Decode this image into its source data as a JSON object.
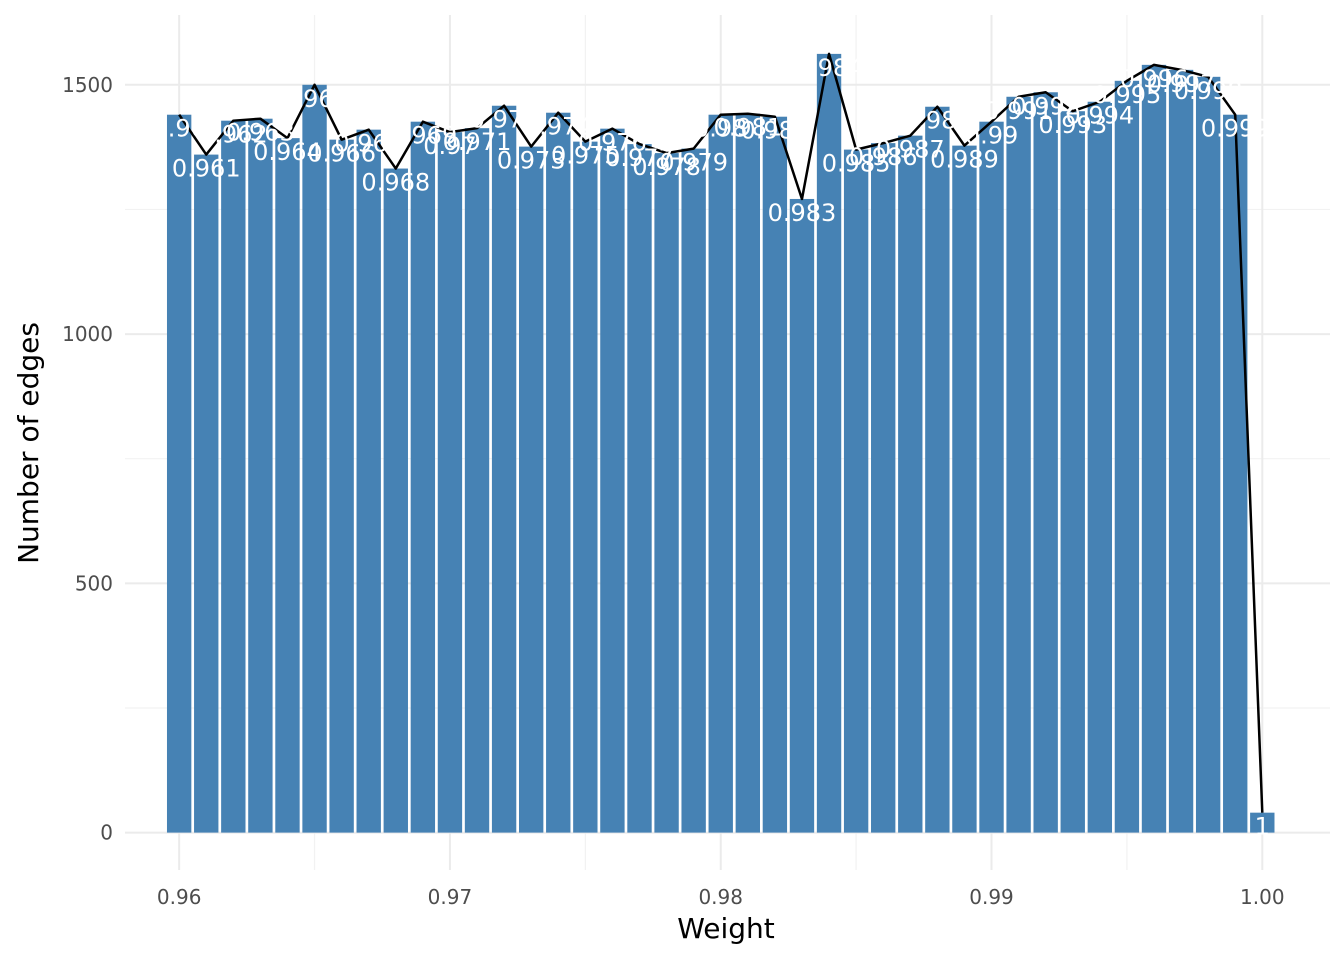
{
  "chart_data": {
    "type": "bar",
    "title": "",
    "xlabel": "Weight",
    "ylabel": "Number of edges",
    "xlim": [
      0.958,
      1.0025
    ],
    "ylim": [
      -75,
      1640
    ],
    "x_ticks": [
      0.96,
      0.97,
      0.98,
      0.99,
      1.0
    ],
    "x_tick_labels": [
      "0.96",
      "0.97",
      "0.98",
      "0.99",
      "1.00"
    ],
    "y_ticks": [
      0,
      500,
      1000,
      1500
    ],
    "y_tick_labels": [
      "0",
      "500",
      "1000",
      "1500"
    ],
    "grid": true,
    "legend": "none",
    "bar_color": "#4682b4",
    "line_color": "#000000",
    "label_color": "#ffffff",
    "x": [
      0.96,
      0.961,
      0.962,
      0.963,
      0.964,
      0.965,
      0.966,
      0.967,
      0.968,
      0.969,
      0.97,
      0.971,
      0.972,
      0.973,
      0.974,
      0.975,
      0.976,
      0.977,
      0.978,
      0.979,
      0.98,
      0.981,
      0.982,
      0.983,
      0.984,
      0.985,
      0.986,
      0.987,
      0.988,
      0.989,
      0.99,
      0.991,
      0.992,
      0.993,
      0.994,
      0.995,
      0.996,
      0.997,
      0.998,
      0.999,
      1.0
    ],
    "values": [
      1440,
      1360,
      1428,
      1432,
      1393,
      1500,
      1390,
      1410,
      1332,
      1426,
      1405,
      1413,
      1458,
      1376,
      1444,
      1386,
      1412,
      1381,
      1363,
      1372,
      1440,
      1442,
      1436,
      1271,
      1562,
      1370,
      1383,
      1398,
      1456,
      1378,
      1426,
      1476,
      1485,
      1447,
      1466,
      1508,
      1540,
      1530,
      1516,
      1440,
      40
    ],
    "labels": [
      "0.96",
      "0.961",
      "0.962",
      "0.963",
      "0.964",
      "0.965",
      "0.966",
      "0.967",
      "0.968",
      "0.969",
      "0.97",
      "0.971",
      "0.972",
      "0.973",
      "0.974",
      "0.975",
      "0.976",
      "0.977",
      "0.978",
      "0.979",
      "0.98",
      "0.981",
      "0.982",
      "0.983",
      "0.984",
      "0.985",
      "0.986",
      "0.987",
      "0.988",
      "0.989",
      "0.99",
      "0.991",
      "0.992",
      "0.993",
      "0.994",
      "0.995",
      "0.996",
      "0.997",
      "0.998",
      "0.999",
      "1"
    ]
  }
}
